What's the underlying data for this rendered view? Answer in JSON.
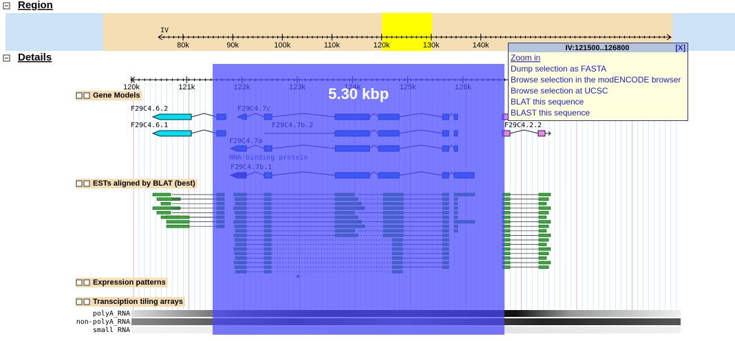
{
  "region": {
    "title": "Region",
    "chromosome": "IV",
    "ticks": [
      "80k",
      "90k",
      "100k",
      "110k",
      "120k",
      "130k",
      "140k"
    ]
  },
  "details": {
    "title": "Details",
    "ticks": [
      "120k",
      "121k",
      "122k",
      "123k",
      "124k",
      "125k",
      "126k"
    ],
    "selection_size": "5.30 kbp",
    "tracks": [
      "Gene Models",
      "ESTs aligned by BLAT (best)",
      "Expression patterns",
      "Transciption tiling arrays"
    ],
    "genes": [
      "F29C4.6.2",
      "F29C4.7c",
      "F29C4.6.1",
      "F29C4.7b.2",
      "F29C4.2.2",
      "F29C4.7a",
      "F29C4.7b.1"
    ],
    "gene_note": "RNA-binding protein",
    "tiling_arrays": [
      "polyA_RNA",
      "non-polyA_RNA",
      "small RNA"
    ]
  },
  "popup": {
    "title": "IV:121500..126800",
    "close": "[X]",
    "items": [
      "Zoom in",
      "Dump selection as FASTA",
      "Browse selection in the modENCODE browser",
      "Browse selection at UCSC",
      "BLAT this sequence",
      "BLAST this sequence"
    ]
  }
}
